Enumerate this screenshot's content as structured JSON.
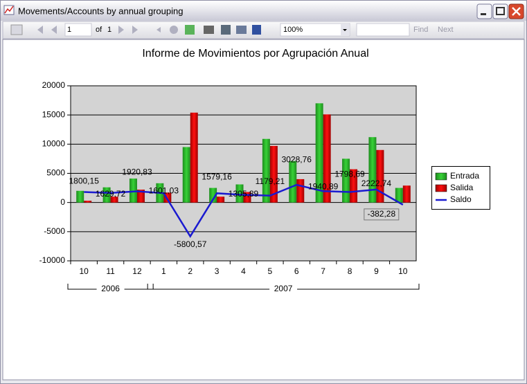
{
  "window": {
    "title": "Movements/Accounts by annual grouping",
    "toolbar": {
      "page": "1",
      "of": "of",
      "total": "1",
      "zoom": "100%",
      "find": "Find",
      "next": "Next"
    }
  },
  "chart_data": {
    "type": "bar",
    "title": "Informe de Movimientos por Agrupación Anual",
    "categories": [
      "10",
      "11",
      "12",
      "1",
      "2",
      "3",
      "4",
      "5",
      "6",
      "7",
      "8",
      "9",
      "10"
    ],
    "groups": [
      "2006",
      "2007"
    ],
    "series": [
      {
        "name": "Entrada",
        "color": "#22b022",
        "values": [
          2000,
          2600,
          4100,
          3300,
          9500,
          2500,
          3100,
          10900,
          7100,
          17000,
          7500,
          11200,
          2500
        ]
      },
      {
        "name": "Salida",
        "color": "#e00000",
        "values": [
          300,
          1000,
          2200,
          1700,
          15400,
          1000,
          1800,
          9700,
          4000,
          15100,
          5700,
          9000,
          2900
        ]
      },
      {
        "name": "Saldo",
        "type": "line",
        "color": "#1a1ad0",
        "values": [
          1800.15,
          1629.72,
          1920.83,
          1601.03,
          -5800.57,
          1579.16,
          1305.89,
          1179.21,
          3028.76,
          1940.89,
          1798.69,
          2222.74,
          -382.28
        ],
        "value_labels": [
          "1800,15",
          "1629,72",
          "1920,83",
          "1601,03",
          "-5800,57",
          "1579,16",
          "1305,89",
          "1179,21",
          "3028,76",
          "1940,89",
          "1798,69",
          "2222,74",
          "-382,28"
        ]
      }
    ],
    "ylim": [
      -10000,
      20000
    ],
    "yticks": [
      -10000,
      -5000,
      0,
      5000,
      10000,
      15000,
      20000
    ],
    "grid": true,
    "legend": "right"
  }
}
